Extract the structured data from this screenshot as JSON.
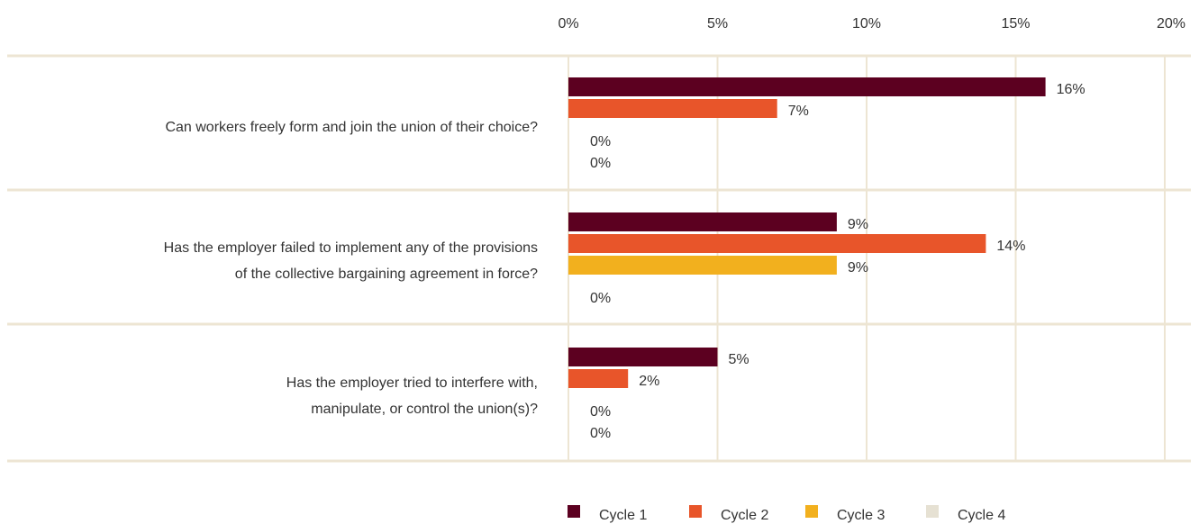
{
  "chart_data": {
    "type": "bar",
    "orientation": "horizontal",
    "categories": [
      [
        "Can workers freely form and join the union of their choice?"
      ],
      [
        "Has the employer failed to implement any of the provisions",
        "of the collective bargaining agreement in force?"
      ],
      [
        "Has the employer tried to interfere with,",
        "manipulate, or control the union(s)?"
      ]
    ],
    "series": [
      {
        "name": "Cycle 1",
        "color": "#5c0020",
        "values": [
          16,
          9,
          5
        ],
        "labels": [
          "16%",
          "9%",
          "5%"
        ]
      },
      {
        "name": "Cycle 2",
        "color": "#e8552a",
        "values": [
          7,
          14,
          2
        ],
        "labels": [
          "7%",
          "14%",
          "2%"
        ]
      },
      {
        "name": "Cycle 3",
        "color": "#f2b01e",
        "values": [
          0,
          9,
          0
        ],
        "labels": [
          "0%",
          "9%",
          "0%"
        ]
      },
      {
        "name": "Cycle 4",
        "color": "#e6e1d3",
        "values": [
          0,
          0,
          0
        ],
        "labels": [
          "0%",
          "0%",
          "0%"
        ]
      }
    ],
    "xticks": [
      "0%",
      "5%",
      "10%",
      "15%",
      "20%"
    ],
    "xlim": [
      0,
      20
    ],
    "grid": true,
    "legend_position": "bottom"
  }
}
